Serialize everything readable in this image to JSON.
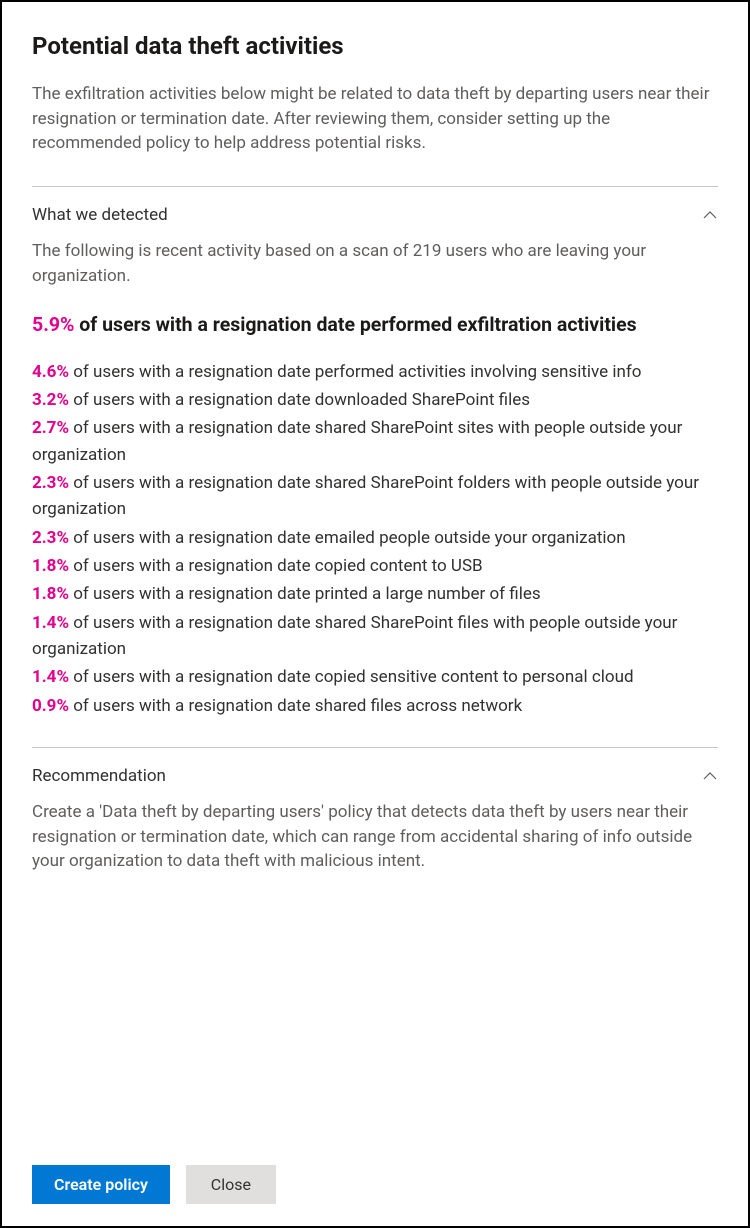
{
  "colors": {
    "accent": "#e3008c",
    "primary_button_bg": "#0078d4",
    "secondary_button_bg": "#e1dfdd",
    "text_primary": "#323130",
    "text_secondary": "#605e5c",
    "divider": "#c8c6c4",
    "panel_border": "#000000",
    "background": "#ffffff"
  },
  "header": {
    "title": "Potential data theft activities",
    "intro": "The exfiltration activities below might be related to data theft by departing users near their resignation or termination date. After reviewing them, consider setting up the recommended policy to help address potential risks."
  },
  "detected": {
    "section_title": "What we detected",
    "expanded": true,
    "description": "The following is recent activity based on a scan of 219 users who are leaving your organization.",
    "headline": {
      "pct": "5.9%",
      "text": " of users with a resignation date performed exfiltration activities"
    },
    "stats": [
      {
        "pct": "4.6%",
        "text": " of users with a resignation date performed activities involving sensitive info"
      },
      {
        "pct": "3.2%",
        "text": " of users with a resignation date downloaded SharePoint files"
      },
      {
        "pct": "2.7%",
        "text": " of users with a resignation date shared SharePoint sites with people outside your organization"
      },
      {
        "pct": "2.3%",
        "text": " of users with a resignation date shared SharePoint folders with people outside your organization"
      },
      {
        "pct": "2.3%",
        "text": " of users with a resignation date emailed people outside your organization"
      },
      {
        "pct": "1.8%",
        "text": " of users with a resignation date copied content to USB"
      },
      {
        "pct": "1.8%",
        "text": " of users with a resignation date printed a large number of files"
      },
      {
        "pct": "1.4%",
        "text": " of users with a resignation date shared SharePoint files with people outside your organization"
      },
      {
        "pct": "1.4%",
        "text": " of users with a resignation date copied sensitive content to personal cloud"
      },
      {
        "pct": "0.9%",
        "text": " of users with a resignation date shared files across network"
      }
    ]
  },
  "recommendation": {
    "section_title": "Recommendation",
    "expanded": true,
    "description": "Create a 'Data theft by departing users' policy that detects data theft by users near their resignation or termination date, which can range from accidental sharing of info outside your organization to data theft with malicious intent."
  },
  "footer": {
    "primary_label": "Create policy",
    "secondary_label": "Close"
  }
}
